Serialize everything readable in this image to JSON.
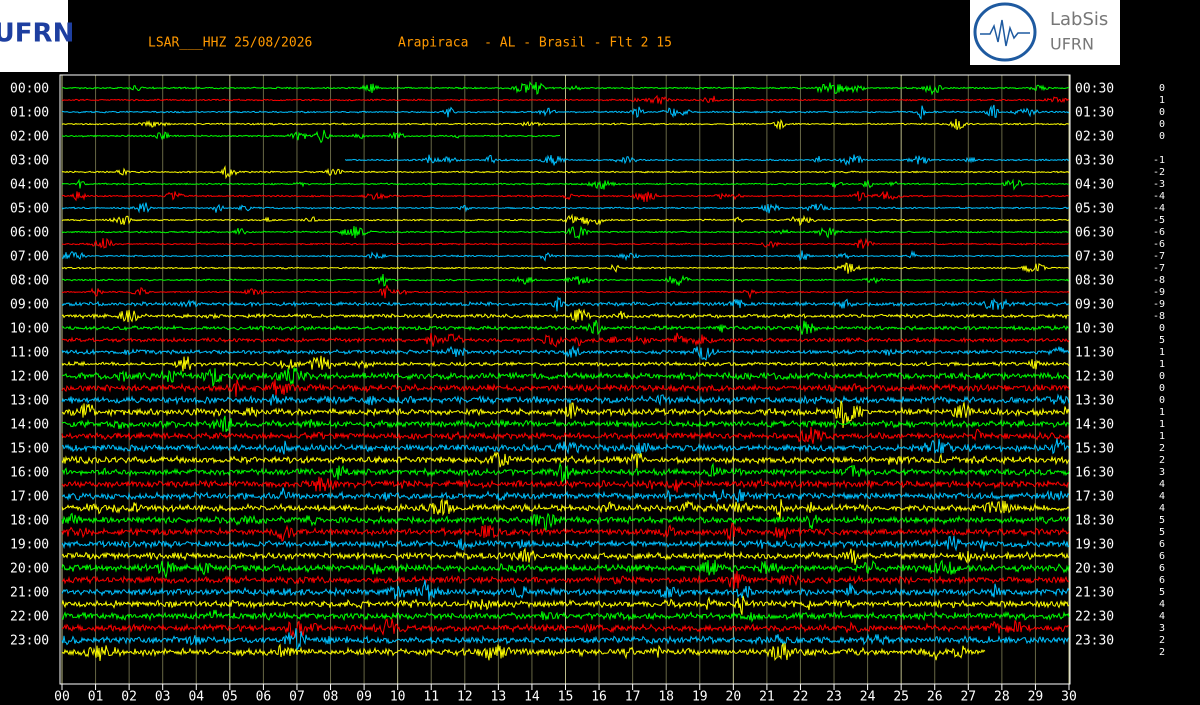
{
  "header": {
    "station": "LSAR___HHZ 25/08/2026",
    "location": "Arapiraca  - AL - Brasil - Flt 2 15",
    "logo_left": "UFRN",
    "logo_right_top": "LabSis",
    "logo_right_bottom": "UFRN"
  },
  "chart_data": {
    "type": "helicorder",
    "colors": [
      "#00ff00",
      "#ff0000",
      "#00c0ff",
      "#ffff00"
    ],
    "left_labels": [
      "00:00",
      "01:00",
      "02:00",
      "03:00",
      "04:00",
      "05:00",
      "06:00",
      "07:00",
      "08:00",
      "09:00",
      "10:00",
      "11:00",
      "12:00",
      "13:00",
      "14:00",
      "15:00",
      "16:00",
      "17:00",
      "18:00",
      "19:00",
      "20:00",
      "21:00",
      "22:00",
      "23:00"
    ],
    "right_labels": [
      "00:30",
      "01:30",
      "02:30",
      "03:30",
      "04:30",
      "05:30",
      "06:30",
      "07:30",
      "08:30",
      "09:30",
      "10:30",
      "11:30",
      "12:30",
      "13:30",
      "14:30",
      "15:30",
      "16:30",
      "17:30",
      "18:30",
      "19:30",
      "20:30",
      "21:30",
      "22:30",
      "23:30"
    ],
    "offsets": [
      0,
      1,
      0,
      0,
      0,
      null,
      -1,
      -2,
      -3,
      -4,
      -4,
      -5,
      -6,
      -6,
      -7,
      -7,
      -8,
      -9,
      -9,
      -8,
      0,
      5,
      1,
      1,
      0,
      0,
      0,
      1,
      1,
      1,
      2,
      2,
      3,
      4,
      4,
      4,
      5,
      5,
      6,
      6,
      6,
      6,
      5,
      4,
      4,
      3,
      2,
      2
    ],
    "x_labels": [
      "00",
      "01",
      "02",
      "03",
      "04",
      "05",
      "06",
      "07",
      "08",
      "09",
      "10",
      "11",
      "12",
      "13",
      "14",
      "15",
      "16",
      "17",
      "18",
      "19",
      "20",
      "21",
      "22",
      "23",
      "24",
      "25",
      "26",
      "27",
      "28",
      "29",
      "30"
    ]
  }
}
